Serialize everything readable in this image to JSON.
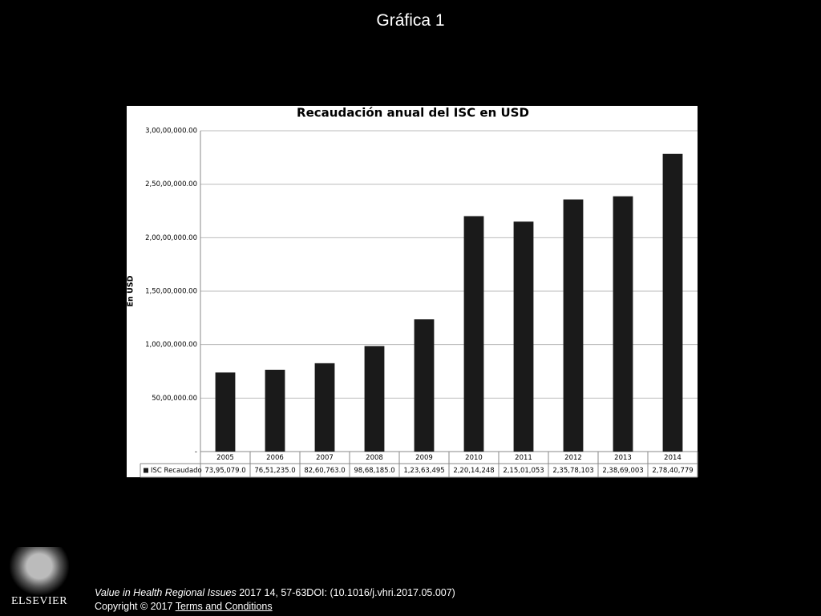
{
  "slide": {
    "title": "Gráfica 1"
  },
  "chart_data": {
    "type": "bar",
    "title": "Recaudación anual del ISC en USD",
    "ylabel": "En USD",
    "categories": [
      "2005",
      "2006",
      "2007",
      "2008",
      "2009",
      "2010",
      "2011",
      "2012",
      "2013",
      "2014"
    ],
    "series": [
      {
        "name": "ISC Recaudado",
        "color": "#1a1a1a",
        "values": [
          7395079.0,
          7651235.0,
          8260763.0,
          9868185.0,
          12363495,
          22014248,
          21501053,
          23578103,
          23869003,
          27840779
        ],
        "value_labels": [
          "73,95,079.0",
          "76,51,235.0",
          "82,60,763.0",
          "98,68,185.0",
          "1,23,63,495",
          "2,20,14,248",
          "2,15,01,053",
          "2,35,78,103",
          "2,38,69,003",
          "2,78,40,779"
        ]
      }
    ],
    "ylim": [
      0,
      30000000
    ],
    "yticks": [
      {
        "value": 0,
        "label": "-"
      },
      {
        "value": 5000000,
        "label": "50,00,000.00"
      },
      {
        "value": 10000000,
        "label": "1,00,00,000.00"
      },
      {
        "value": 15000000,
        "label": "1,50,00,000.00"
      },
      {
        "value": 20000000,
        "label": "2,00,00,000.00"
      },
      {
        "value": 25000000,
        "label": "2,50,00,000.00"
      },
      {
        "value": 30000000,
        "label": "3,00,00,000.00"
      }
    ],
    "grid": true
  },
  "footer": {
    "journal": "Value in Health Regional Issues",
    "citation": " 2017 14, 57-63DOI: (10.1016/j.vhri.2017.05.007)",
    "copyright": "Copyright © 2017",
    "link": " Terms and Conditions"
  },
  "logo": {
    "text": "ELSEVIER"
  }
}
